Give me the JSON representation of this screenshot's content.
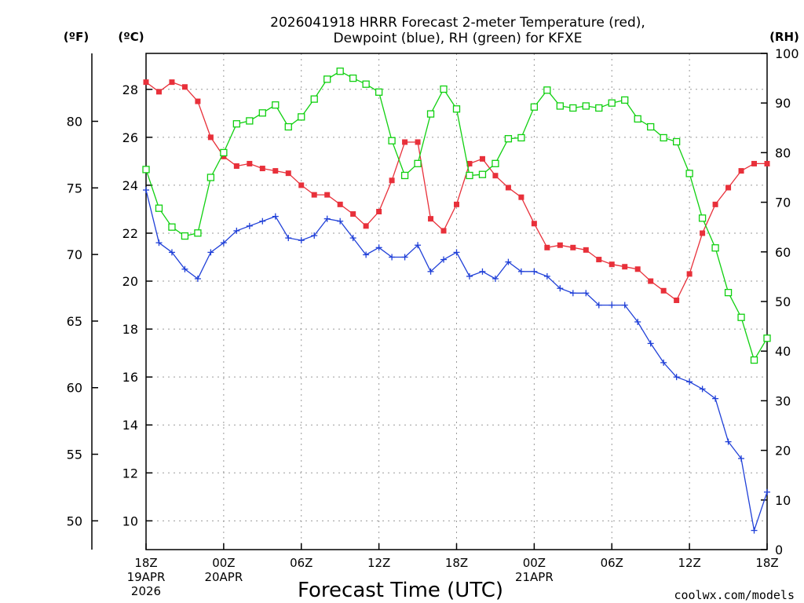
{
  "title_line1": "2026041918 HRRR Forecast 2-meter Temperature (red),",
  "title_line2": "Dewpoint (blue), RH (green) for KFXE",
  "unit_f": "(ºF)",
  "unit_c": "(ºC)",
  "unit_rh": "(RH)",
  "xlabel": "Forecast Time (UTC)",
  "credit": "coolwx.com/models",
  "credit_color": "#e0202a",
  "date_labels": [
    {
      "hour": 0,
      "line1": "19APR",
      "line2": "2026"
    },
    {
      "hour": 6,
      "line1": "20APR",
      "line2": ""
    },
    {
      "hour": 30,
      "line1": "21APR",
      "line2": ""
    }
  ],
  "chart_data": {
    "type": "line",
    "x_unit": "forecast hour from 2026-04-19 18Z",
    "xlim": [
      0,
      48
    ],
    "x_ticks": [
      {
        "hour": 0,
        "label": "18Z"
      },
      {
        "hour": 6,
        "label": "00Z"
      },
      {
        "hour": 12,
        "label": "06Z"
      },
      {
        "hour": 18,
        "label": "12Z"
      },
      {
        "hour": 24,
        "label": "18Z"
      },
      {
        "hour": 30,
        "label": "00Z"
      },
      {
        "hour": 36,
        "label": "06Z"
      },
      {
        "hour": 42,
        "label": "12Z"
      },
      {
        "hour": 48,
        "label": "18Z"
      }
    ],
    "y_celsius": {
      "lim": [
        8.8,
        29.5
      ],
      "ticks": [
        10,
        12,
        14,
        16,
        18,
        20,
        22,
        24,
        26,
        28
      ]
    },
    "y_fahrenheit": {
      "lim": [
        47.84,
        85.1
      ],
      "ticks": [
        50,
        55,
        60,
        65,
        70,
        75,
        80
      ]
    },
    "y_rh": {
      "lim": [
        0,
        100
      ],
      "ticks": [
        0,
        10,
        20,
        30,
        40,
        50,
        60,
        70,
        80,
        90,
        100
      ]
    },
    "grid": true,
    "series": [
      {
        "key": "temperature",
        "axis": "celsius",
        "color": "#e8303a",
        "marker": "filled-square",
        "values": [
          28.3,
          27.9,
          28.3,
          28.1,
          27.5,
          26.0,
          25.2,
          24.8,
          24.9,
          24.7,
          24.6,
          24.5,
          24.0,
          23.6,
          23.6,
          23.2,
          22.8,
          22.3,
          22.9,
          24.2,
          25.8,
          25.8,
          22.6,
          22.1,
          23.2,
          24.9,
          25.1,
          24.4,
          23.9,
          23.5,
          22.4,
          21.4,
          21.5,
          21.4,
          21.3,
          20.9,
          20.7,
          20.6,
          20.5,
          20.0,
          19.6,
          19.2,
          20.3,
          22.0,
          23.2,
          23.9,
          24.6,
          24.9,
          24.9
        ]
      },
      {
        "key": "dewpoint",
        "axis": "celsius",
        "color": "#2040d8",
        "marker": "plus",
        "values": [
          23.8,
          21.6,
          21.2,
          20.5,
          20.1,
          21.2,
          21.6,
          22.1,
          22.3,
          22.5,
          22.7,
          21.8,
          21.7,
          21.9,
          22.6,
          22.5,
          21.8,
          21.1,
          21.4,
          21.0,
          21.0,
          21.5,
          20.4,
          20.9,
          21.2,
          20.2,
          20.4,
          20.1,
          20.8,
          20.4,
          20.4,
          20.2,
          19.7,
          19.5,
          19.5,
          19.0,
          19.0,
          19.0,
          18.3,
          17.4,
          16.6,
          16.0,
          15.8,
          15.5,
          15.1,
          13.3,
          12.6,
          9.6,
          11.2
        ]
      },
      {
        "key": "relative_humidity",
        "axis": "rh",
        "color": "#10d010",
        "marker": "open-square",
        "values": [
          76.6,
          68.8,
          65.0,
          63.2,
          63.8,
          75.0,
          80.0,
          85.8,
          86.4,
          88.0,
          89.6,
          85.2,
          87.2,
          90.8,
          94.8,
          96.4,
          95.0,
          93.8,
          92.2,
          82.4,
          75.4,
          77.8,
          87.8,
          92.8,
          88.8,
          75.4,
          75.6,
          77.8,
          82.8,
          83.0,
          89.2,
          92.6,
          89.4,
          89.0,
          89.4,
          89.0,
          90.0,
          90.6,
          86.8,
          85.2,
          83.0,
          82.2,
          75.8,
          66.8,
          60.8,
          51.8,
          46.8,
          38.2,
          42.6
        ]
      }
    ]
  }
}
